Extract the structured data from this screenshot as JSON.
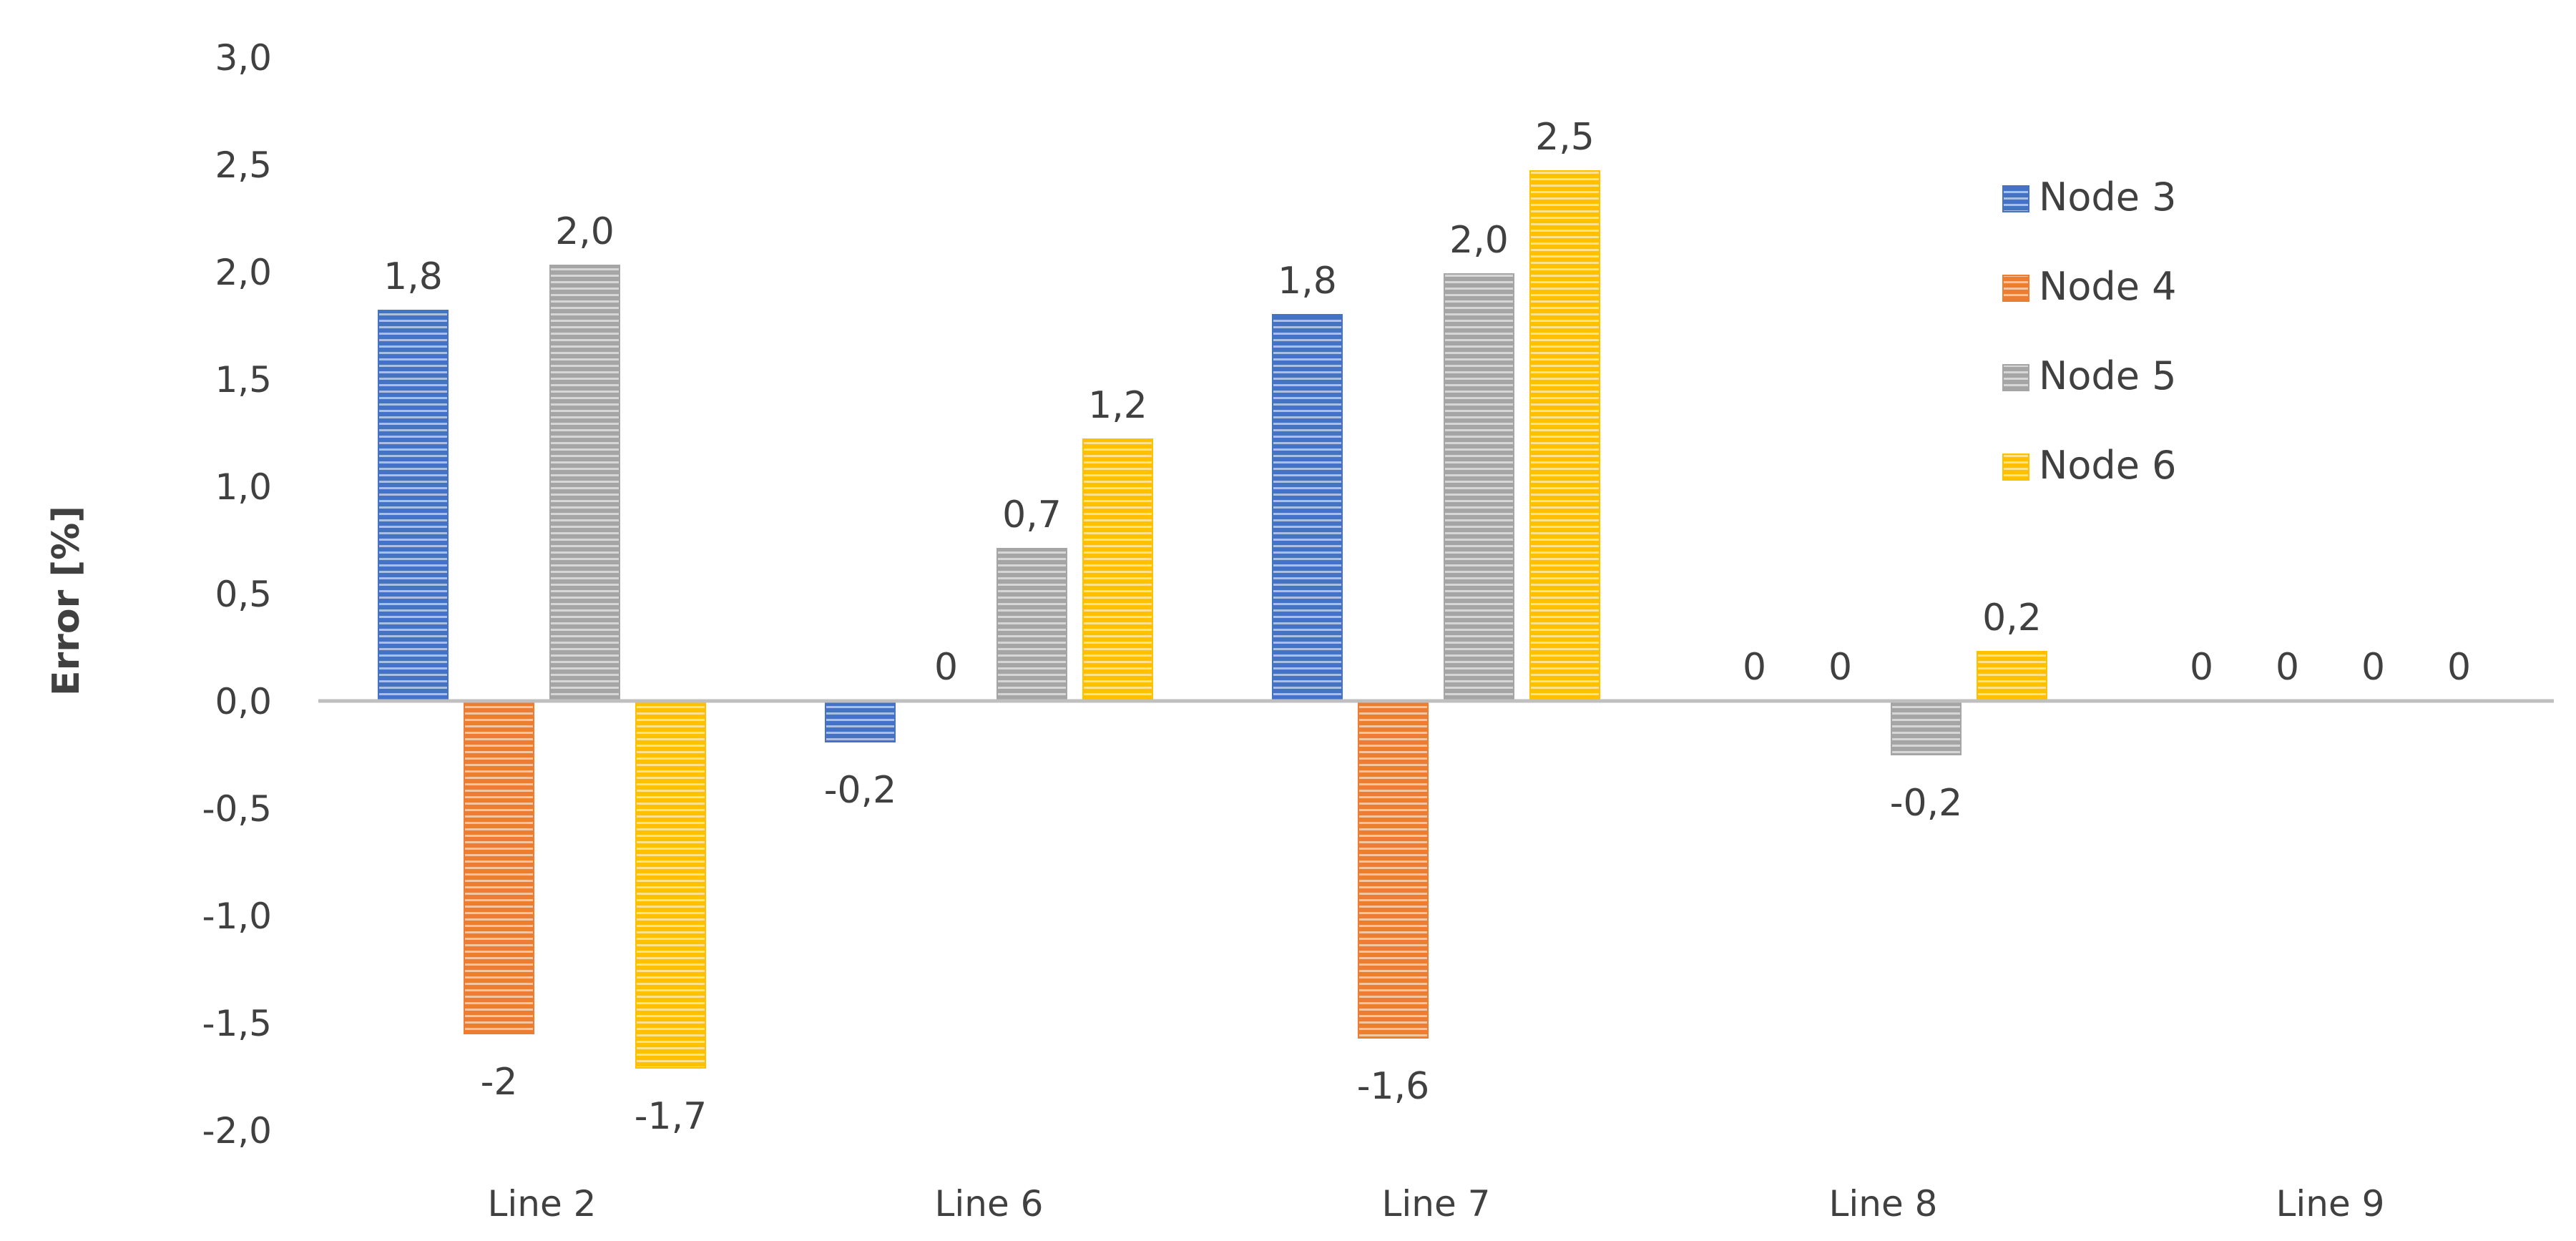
{
  "chart_data": {
    "type": "bar",
    "ylabel": "Error [%]",
    "ylim": [
      -2.0,
      3.0
    ],
    "yticks": [
      "3,0",
      "2,5",
      "2,0",
      "1,5",
      "1,0",
      "0,5",
      "0,0",
      "-0,5",
      "-1,0",
      "-1,5",
      "-2,0"
    ],
    "ytick_values": [
      3.0,
      2.5,
      2.0,
      1.5,
      1.0,
      0.5,
      0.0,
      -0.5,
      -1.0,
      -1.5,
      -2.0
    ],
    "categories": [
      "Line 2",
      "Line 6",
      "Line 7",
      "Line 8",
      "Line 9"
    ],
    "legend_position": "right",
    "grid": false,
    "series": [
      {
        "name": "Node 3",
        "color": "#4472C4",
        "values": [
          1.82,
          -0.19,
          1.8,
          0,
          0
        ],
        "labels": [
          "1,8",
          "-0,2",
          "1,8",
          "0",
          "0"
        ]
      },
      {
        "name": "Node 4",
        "color": "#ED7D31",
        "values": [
          -1.55,
          0,
          -1.57,
          0,
          0
        ],
        "labels": [
          "-2",
          "0",
          "-1,6",
          "0",
          "0"
        ]
      },
      {
        "name": "Node 5",
        "color": "#A5A5A5",
        "values": [
          2.03,
          0.71,
          1.99,
          -0.25,
          0
        ],
        "labels": [
          "2,0",
          "0,7",
          "2,0",
          "-0,2",
          "0"
        ]
      },
      {
        "name": "Node 6",
        "color": "#FFC000",
        "values": [
          -1.71,
          1.22,
          2.47,
          0.23,
          0
        ],
        "labels": [
          "-1,7",
          "1,2",
          "2,5",
          "0,2",
          "0"
        ]
      }
    ]
  }
}
